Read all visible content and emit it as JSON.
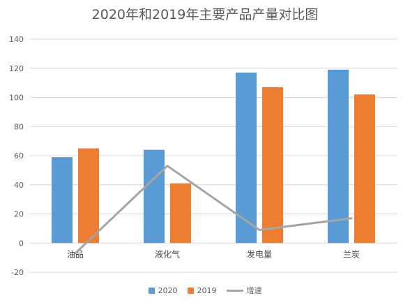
{
  "chart_data": {
    "type": "bar",
    "title": "2020年和2019年主要产品产量对比图",
    "categories": [
      "油品",
      "液化气",
      "发电量",
      "兰炭"
    ],
    "series": [
      {
        "name": "2020",
        "kind": "bar",
        "color": "#5B9BD5",
        "values": [
          59,
          64,
          117,
          119
        ]
      },
      {
        "name": "2019",
        "kind": "bar",
        "color": "#ED7D31",
        "values": [
          65,
          41,
          107,
          102
        ]
      },
      {
        "name": "增速",
        "kind": "line",
        "color": "#A5A5A5",
        "values": [
          -7,
          53,
          9,
          17
        ]
      }
    ],
    "ylim": [
      -20,
      140
    ],
    "yticks": [
      -20,
      0,
      20,
      40,
      60,
      80,
      100,
      120,
      140
    ],
    "grid": true,
    "legend_position": "bottom"
  }
}
